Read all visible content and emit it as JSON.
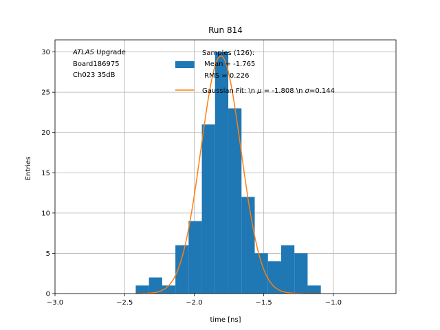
{
  "chart_data": {
    "type": "bar",
    "title": "Run 814",
    "xlabel": "time [ns]",
    "ylabel": "Entries",
    "xlim": [
      -3.0,
      -0.55
    ],
    "ylim": [
      0,
      31.5
    ],
    "grid": true,
    "xticks": [
      -3.0,
      -2.5,
      -2.0,
      -1.5,
      -1.0
    ],
    "xtick_labels": [
      "−3.0",
      "−2.5",
      "−2.0",
      "−1.5",
      "−1.0"
    ],
    "yticks": [
      0,
      5,
      10,
      15,
      20,
      25,
      30
    ],
    "ytick_labels": [
      "0",
      "5",
      "10",
      "15",
      "20",
      "25",
      "30"
    ],
    "annotation": {
      "lines": [
        "ATLAS Upgrade",
        "Board186975",
        "Ch023 35dB"
      ],
      "italic_word": "ATLAS",
      "rest_first_line": " Upgrade"
    },
    "histogram": {
      "name_lines": [
        "Samples (126):",
        " Mean = -1.765",
        " RMS = 0.226"
      ],
      "color": "#1f77b4",
      "bin_edges": [
        -2.42,
        -2.325,
        -2.23,
        -2.135,
        -2.04,
        -1.945,
        -1.85,
        -1.755,
        -1.66,
        -1.565,
        -1.47,
        -1.375,
        -1.28,
        -1.185,
        -1.09
      ],
      "counts": [
        1,
        2,
        1,
        6,
        9,
        21,
        30,
        23,
        12,
        5,
        4,
        6,
        5,
        1
      ]
    },
    "fit": {
      "name": "Gaussian Fit: \\n μ = -1.808 \\n σ=0.144",
      "label_prefix": "Gaussian Fit: \\n ",
      "label_mu": "μ",
      "label_mid": " = -1.808 \\n ",
      "label_sigma": "σ",
      "label_suffix": "=0.144",
      "mu": -1.808,
      "sigma": 0.144,
      "amplitude": 29.5,
      "color": "#ff7f0e"
    },
    "legend_position": "top-right"
  }
}
